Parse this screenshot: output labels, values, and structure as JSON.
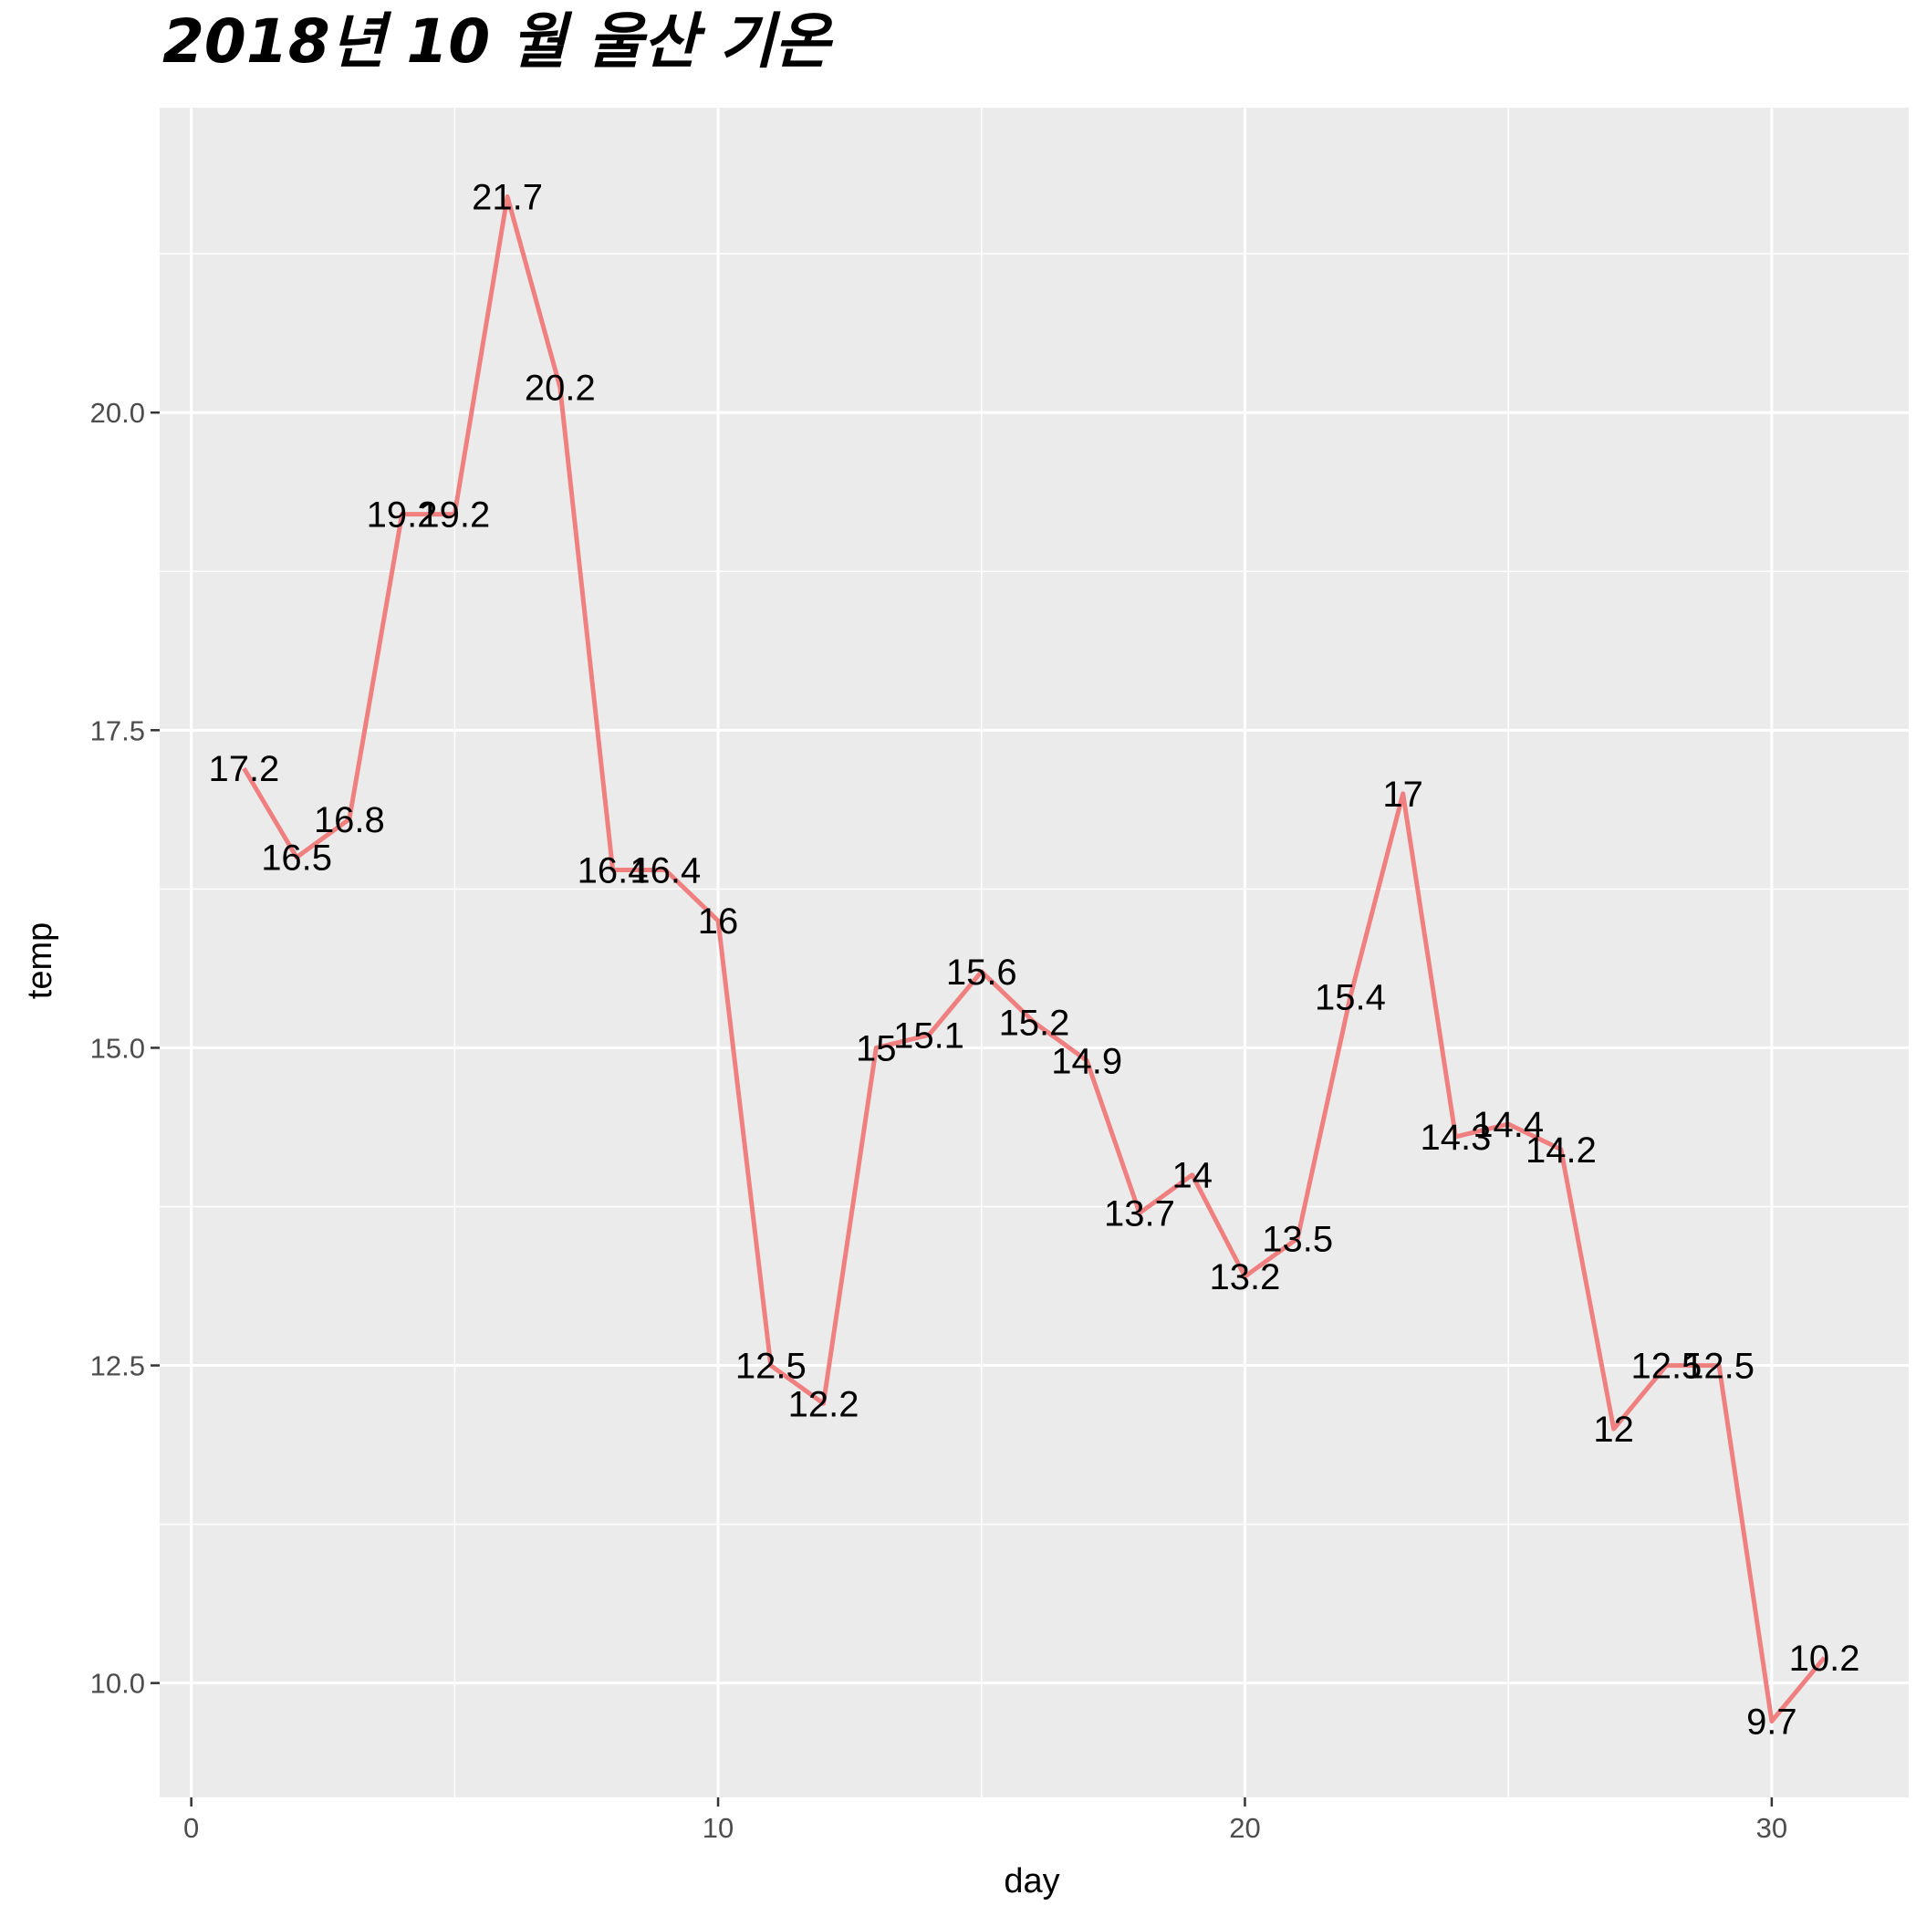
{
  "chart_data": {
    "type": "line",
    "title": "2018년 10 월 울산 기온",
    "xlabel": "day",
    "ylabel": "temp",
    "xlim": [
      -0.6,
      32.6
    ],
    "ylim": [
      9.1,
      22.4
    ],
    "x_ticks": [
      0,
      10,
      20,
      30
    ],
    "y_ticks": [
      10.0,
      12.5,
      15.0,
      17.5,
      20.0
    ],
    "x_tick_labels": [
      "0",
      "10",
      "20",
      "30"
    ],
    "y_tick_labels": [
      "10.0",
      "12.5",
      "15.0",
      "17.5",
      "20.0"
    ],
    "grid": true,
    "legend": "none",
    "line_color": "#f08080",
    "panel_background": "#ebebeb",
    "series": [
      {
        "x": [
          1,
          2,
          3,
          4,
          5,
          6,
          7,
          8,
          9,
          10,
          11,
          12,
          13,
          14,
          15,
          16,
          17,
          18,
          19,
          20,
          21,
          22,
          23,
          24,
          25,
          26,
          27,
          28,
          29,
          30,
          31
        ],
        "values": [
          17.2,
          16.5,
          16.8,
          19.2,
          19.2,
          21.7,
          20.2,
          16.4,
          16.4,
          16,
          12.5,
          12.2,
          15,
          15.1,
          15.6,
          15.2,
          14.9,
          13.7,
          14,
          13.2,
          13.5,
          15.4,
          17,
          14.3,
          14.4,
          14.2,
          12,
          12.5,
          12.5,
          9.7,
          10.2
        ],
        "labels": [
          "17.2",
          "16.5",
          "16.8",
          "19.2",
          "19.2",
          "21.7",
          "20.2",
          "16.4",
          "16.4",
          "16",
          "12.5",
          "12.2",
          "15",
          "15.1",
          "15.6",
          "15.2",
          "14.9",
          "13.7",
          "14",
          "13.2",
          "13.5",
          "15.4",
          "17",
          "14.3",
          "14.4",
          "14.2",
          "12",
          "12.5",
          "12.5",
          "9.7",
          "10.2"
        ]
      }
    ]
  }
}
